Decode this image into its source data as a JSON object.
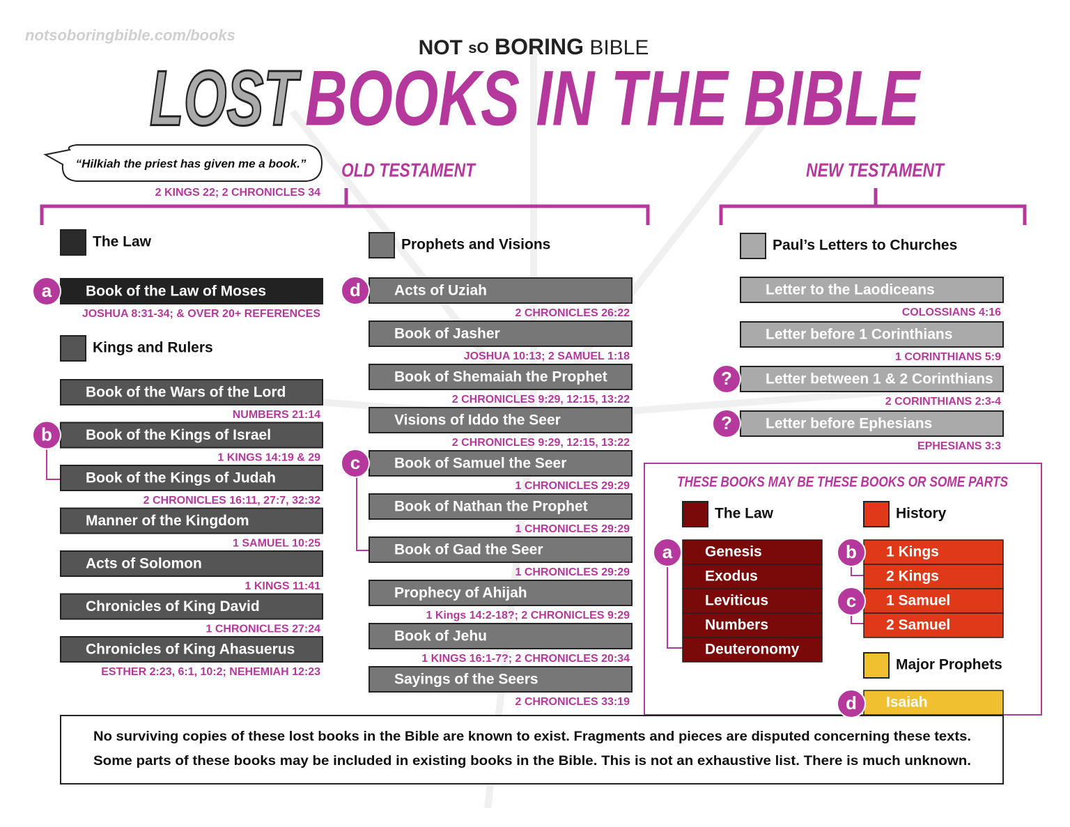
{
  "watermark": "notsoboringbible.com/books",
  "brand": {
    "not": "NOT",
    "so": "sO",
    "boring": "BORING",
    "bible": "BIBLE"
  },
  "title": {
    "lost": "LOST",
    "rest": "BOOKS IN THE BIBLE"
  },
  "quote": {
    "text": "“Hilkiah the priest has given me a book.”",
    "reference": "2 KINGS 22; 2 CHRONICLES 34"
  },
  "old_testament": {
    "heading": "OLD TESTAMENT",
    "law": {
      "heading": "The Law",
      "items": [
        {
          "badge": "a",
          "name": "Book of the Law of Moses",
          "ref": "JOSHUA 8:31-34; & OVER 20+ REFERENCES"
        }
      ]
    },
    "kings": {
      "heading": "Kings and Rulers",
      "items": [
        {
          "name": "Book of the Wars of the Lord",
          "ref": "NUMBERS 21:14"
        },
        {
          "badge": "b",
          "name": "Book of the Kings of Israel",
          "ref": "1 KINGS 14:19 & 29"
        },
        {
          "name": "Book of the Kings of Judah",
          "ref": "2 CHRONICLES 16:11, 27:7, 32:32"
        },
        {
          "name": "Manner of the Kingdom",
          "ref": "1 SAMUEL 10:25"
        },
        {
          "name": "Acts of Solomon",
          "ref": "1 KINGS 11:41"
        },
        {
          "name": "Chronicles of King David",
          "ref": "1 CHRONICLES 27:24"
        },
        {
          "name": "Chronicles of King Ahasuerus",
          "ref": "ESTHER 2:23, 6:1, 10:2; NEHEMIAH 12:23"
        }
      ]
    },
    "prophets": {
      "heading": "Prophets and Visions",
      "items": [
        {
          "badge": "d",
          "name": "Acts of Uziah",
          "ref": "2 CHRONICLES 26:22"
        },
        {
          "name": "Book of Jasher",
          "ref": "JOSHUA 10:13; 2 SAMUEL 1:18"
        },
        {
          "name": "Book of Shemaiah the Prophet",
          "ref": "2 CHRONICLES 9:29, 12:15, 13:22"
        },
        {
          "name": "Visions of Iddo the Seer",
          "ref": "2 CHRONICLES 9:29, 12:15, 13:22"
        },
        {
          "badge": "c",
          "name": "Book of Samuel the Seer",
          "ref": "1 CHRONICLES 29:29"
        },
        {
          "name": "Book of Nathan the Prophet",
          "ref": "1 CHRONICLES 29:29"
        },
        {
          "name": "Book of Gad the Seer",
          "ref": "1 CHRONICLES 29:29"
        },
        {
          "name": "Prophecy of Ahijah",
          "ref": "1 Kings 14:2-18?; 2 CHRONICLES 9:29"
        },
        {
          "name": "Book of Jehu",
          "ref": "1 KINGS 16:1-7?; 2 CHRONICLES 20:34"
        },
        {
          "name": "Sayings of the Seers",
          "ref": "2 CHRONICLES 33:19"
        }
      ]
    }
  },
  "new_testament": {
    "heading": "NEW TESTAMENT",
    "letters": {
      "heading": "Paul’s Letters to Churches",
      "items": [
        {
          "name": "Letter to the Laodiceans",
          "ref": "COLOSSIANS 4:16"
        },
        {
          "name": "Letter before 1 Corinthians",
          "ref": "1 CORINTHIANS 5:9"
        },
        {
          "badge": "?",
          "name": "Letter between 1 & 2 Corinthians",
          "ref": "2 CORINTHIANS 2:3-4"
        },
        {
          "badge": "?",
          "name": "Letter before Ephesians",
          "ref": "EPHESIANS 3:3"
        }
      ]
    }
  },
  "possible": {
    "title": "THESE BOOKS MAY BE THESE BOOKS OR SOME PARTS",
    "law": {
      "heading": "The Law",
      "badge": "a",
      "books": [
        "Genesis",
        "Exodus",
        "Leviticus",
        "Numbers",
        "Deuteronomy"
      ]
    },
    "history": {
      "heading": "History",
      "groups": [
        {
          "badge": "b",
          "books": [
            "1 Kings",
            "2 Kings"
          ]
        },
        {
          "badge": "c",
          "books": [
            "1 Samuel",
            "2 Samuel"
          ]
        }
      ]
    },
    "prophets": {
      "heading": "Major Prophets",
      "badge": "d",
      "books": [
        "Isaiah"
      ]
    }
  },
  "footer": {
    "lines": [
      "No surviving copies of these lost books in the Bible are known to exist. Fragments and pieces are disputed concerning these texts.",
      "Some parts of these books may be included in existing books in the Bible. This is not an exhaustive list. There is much unknown."
    ]
  }
}
